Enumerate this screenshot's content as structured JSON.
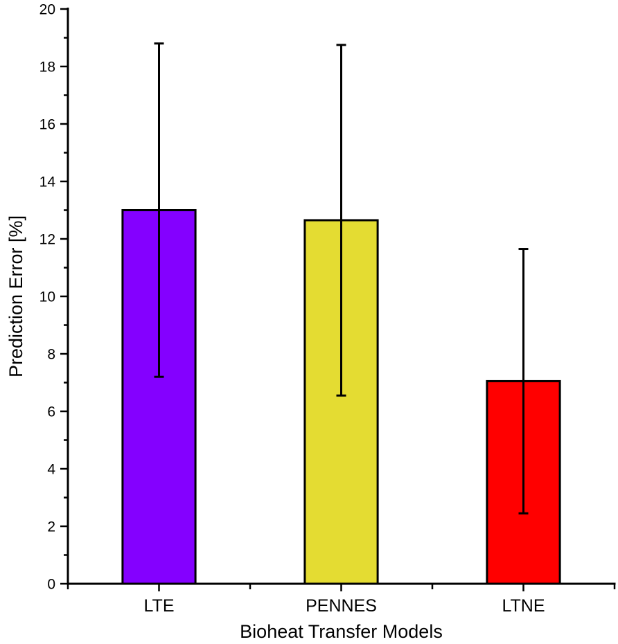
{
  "chart_data": {
    "type": "bar",
    "title": "",
    "categories": [
      "LTE",
      "PENNES",
      "LTNE"
    ],
    "values": [
      13.0,
      12.65,
      7.05
    ],
    "errors": [
      5.8,
      6.1,
      4.6
    ],
    "error_bar_style": "symmetric-caps",
    "bar_colors": [
      "#8400FF",
      "#E4DC32",
      "#FF0000"
    ],
    "bar_border_color": "#000000",
    "axis_color": "#000000",
    "background_color": "#FFFFFF",
    "xlabel": "Bioheat Transfer Models",
    "ylabel": "Prediction Error [%]",
    "ylim": [
      0,
      20
    ],
    "ytick_major_step": 2,
    "ytick_minor_step": 1,
    "ytick_labels": [
      "0",
      "2",
      "4",
      "6",
      "8",
      "10",
      "12",
      "14",
      "16",
      "18",
      "20"
    ],
    "grid": false,
    "legend": "none",
    "frame": "left-bottom-only"
  }
}
